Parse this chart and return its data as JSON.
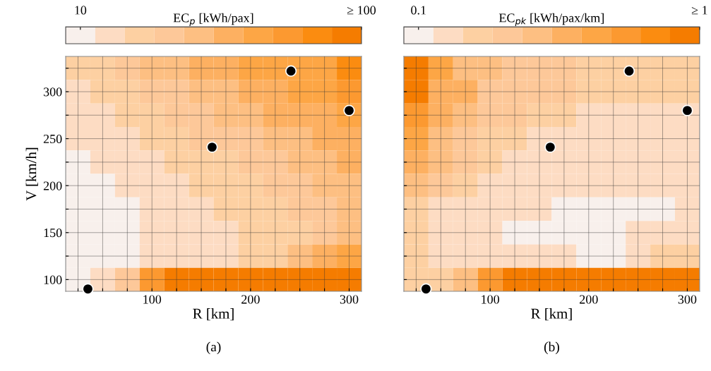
{
  "chart_data": [
    {
      "type": "heatmap",
      "xlabel": "R [km]",
      "ylabel": "V [km/h]",
      "clabel": "EC$_{p}$ [kWh/pax]",
      "x": [
        25,
        50,
        75,
        100,
        125,
        150,
        175,
        200,
        225,
        250,
        275,
        300
      ],
      "cells": [
        [
          29,
          29,
          38,
          48,
          48,
          57,
          57,
          67,
          67,
          67,
          67,
          86
        ],
        [
          19,
          29,
          29,
          38,
          38,
          48,
          48,
          57,
          57,
          67,
          67,
          76
        ],
        [
          19,
          19,
          29,
          29,
          38,
          38,
          48,
          48,
          57,
          57,
          57,
          67
        ],
        [
          19,
          19,
          19,
          29,
          29,
          38,
          38,
          38,
          48,
          48,
          57,
          57
        ],
        [
          10,
          19,
          19,
          19,
          29,
          29,
          29,
          38,
          38,
          48,
          48,
          57
        ],
        [
          10,
          10,
          19,
          19,
          19,
          29,
          29,
          29,
          38,
          38,
          48,
          48
        ],
        [
          10,
          10,
          10,
          19,
          19,
          19,
          29,
          29,
          29,
          38,
          38,
          48
        ],
        [
          10,
          10,
          10,
          19,
          19,
          19,
          19,
          29,
          29,
          29,
          38,
          48
        ],
        [
          10,
          10,
          10,
          19,
          19,
          19,
          19,
          29,
          29,
          48,
          57,
          67
        ],
        [
          10,
          19,
          38,
          76,
          95,
          95,
          95,
          95,
          95,
          95,
          95,
          95
        ]
      ],
      "clim": [
        5.3,
        100
      ],
      "cticks": [
        10,
        {
          "value": 100,
          "label": "≥ 100"
        }
      ],
      "xlim": [
        12.5,
        312.5
      ],
      "ylim": [
        87.5,
        337.5
      ],
      "xticks": [
        {
          "value": 25,
          "label": null
        },
        {
          "value": 50,
          "label": null
        },
        {
          "value": 75,
          "label": null
        },
        100,
        {
          "value": 125,
          "label": null
        },
        {
          "value": 150,
          "label": null
        },
        {
          "value": 175,
          "label": null
        },
        200,
        {
          "value": 225,
          "label": null
        },
        {
          "value": 250,
          "label": null
        },
        {
          "value": 275,
          "label": null
        },
        300
      ],
      "yticks": [
        100,
        {
          "value": 125,
          "label": null
        },
        150,
        {
          "value": 175,
          "label": null
        },
        200,
        {
          "value": 225,
          "label": null
        },
        250,
        {
          "value": 275,
          "label": null
        },
        300,
        {
          "value": 325,
          "label": null
        }
      ],
      "grid": true,
      "marker": "circle",
      "series": [
        {
          "type": "scatter",
          "color": "#000000",
          "x": [
            35,
            161,
            241,
            300
          ],
          "values": [
            90,
            241,
            322,
            280
          ]
        }
      ],
      "annotations": [
        "(a)"
      ]
    },
    {
      "type": "heatmap",
      "xlabel": "R [km]",
      "clabel": "EC$_{pk}$ [kWh/pax/km]",
      "x": [
        25,
        50,
        75,
        100,
        125,
        150,
        175,
        200,
        225,
        250,
        275,
        300
      ],
      "cells": [
        [
          0.95,
          0.67,
          0.48,
          0.48,
          0.38,
          0.38,
          0.38,
          0.29,
          0.29,
          0.29,
          0.29,
          0.29
        ],
        [
          0.95,
          0.57,
          0.57,
          0.38,
          0.38,
          0.38,
          0.38,
          0.29,
          0.29,
          0.29,
          0.29,
          0.29
        ],
        [
          0.76,
          0.57,
          0.48,
          0.38,
          0.38,
          0.29,
          0.29,
          0.19,
          0.19,
          0.19,
          0.19,
          0.19
        ],
        [
          0.67,
          0.48,
          0.38,
          0.29,
          0.29,
          0.19,
          0.19,
          0.19,
          0.19,
          0.19,
          0.19,
          0.19
        ],
        [
          0.57,
          0.48,
          0.38,
          0.29,
          0.19,
          0.19,
          0.19,
          0.19,
          0.19,
          0.19,
          0.19,
          0.19
        ],
        [
          0.48,
          0.38,
          0.29,
          0.19,
          0.19,
          0.19,
          0.19,
          0.19,
          0.19,
          0.19,
          0.19,
          0.19
        ],
        [
          0.29,
          0.19,
          0.19,
          0.19,
          0.19,
          0.19,
          0.1,
          0.1,
          0.1,
          0.1,
          0.1,
          0.19
        ],
        [
          0.29,
          0.19,
          0.19,
          0.19,
          0.1,
          0.1,
          0.1,
          0.1,
          0.1,
          0.19,
          0.19,
          0.19
        ],
        [
          0.29,
          0.19,
          0.19,
          0.19,
          0.19,
          0.19,
          0.19,
          0.1,
          0.1,
          0.19,
          0.29,
          0.29
        ],
        [
          0.29,
          0.29,
          0.48,
          0.76,
          0.95,
          0.95,
          0.95,
          0.95,
          0.95,
          0.95,
          0.95,
          0.95
        ]
      ],
      "clim": [
        0.053,
        1
      ],
      "cticks": [
        0.1,
        {
          "value": 1,
          "label": "≥ 1"
        }
      ],
      "xlim": [
        12.5,
        312.5
      ],
      "ylim": [
        87.5,
        337.5
      ],
      "xticks": [
        {
          "value": 25,
          "label": null
        },
        {
          "value": 50,
          "label": null
        },
        {
          "value": 75,
          "label": null
        },
        100,
        {
          "value": 125,
          "label": null
        },
        {
          "value": 150,
          "label": null
        },
        {
          "value": 175,
          "label": null
        },
        200,
        {
          "value": 225,
          "label": null
        },
        {
          "value": 250,
          "label": null
        },
        {
          "value": 275,
          "label": null
        },
        300
      ],
      "yticks": [
        100,
        {
          "value": 125,
          "label": null
        },
        150,
        {
          "value": 175,
          "label": null
        },
        200,
        {
          "value": 225,
          "label": null
        },
        250,
        {
          "value": 275,
          "label": null
        },
        300,
        {
          "value": 325,
          "label": null
        }
      ],
      "grid": true,
      "marker": "circle",
      "tick_labels": "x",
      "series": [
        {
          "type": "scatter",
          "color": "#000000",
          "x": [
            35,
            161,
            241,
            300
          ],
          "values": [
            90,
            241,
            322,
            280
          ]
        }
      ],
      "annotations": [
        "(b)"
      ]
    }
  ]
}
